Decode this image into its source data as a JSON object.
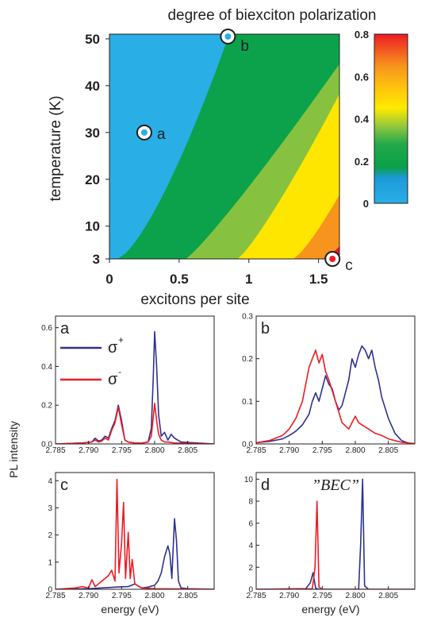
{
  "chart_data": [
    {
      "type": "heatmap",
      "title": "degree of biexciton polarization",
      "xlabel": "excitons per site",
      "ylabel": "temperature (K)",
      "xlim": [
        0,
        1.65
      ],
      "ylim": [
        3,
        51
      ],
      "x_ticks": [
        "0",
        "0.5",
        "1",
        "1.5"
      ],
      "x_tick_values": [
        0,
        0.5,
        1,
        1.5
      ],
      "y_ticks": [
        "3",
        "10",
        "20",
        "30",
        "40",
        "50"
      ],
      "y_tick_values": [
        3,
        10,
        20,
        30,
        40,
        50
      ],
      "colorbar": {
        "range": [
          0,
          0.8
        ],
        "ticks": [
          "0",
          "0.2",
          "0.4",
          "0.6",
          "0.8"
        ],
        "tick_values": [
          0,
          0.2,
          0.4,
          0.6,
          0.8
        ],
        "colors": [
          "#29aee6",
          "#1c9ad8",
          "#0aa04a",
          "#23a94a",
          "#8cc63f",
          "#ffea00",
          "#ffc20e",
          "#f7941d",
          "#ed1c24"
        ],
        "levels": [
          0,
          0.12,
          0.17,
          0.28,
          0.36,
          0.45,
          0.55,
          0.65,
          0.8
        ]
      },
      "points": [
        {
          "label": "a",
          "x": 0.25,
          "y": 30
        },
        {
          "label": "b",
          "x": 0.85,
          "y": 50.5
        },
        {
          "label": "c",
          "x": 1.6,
          "y": 3
        }
      ]
    },
    {
      "type": "line",
      "panel_label": "a",
      "xlabel": "",
      "ylabel": "",
      "xlim": [
        2.785,
        2.809
      ],
      "ylim": [
        0,
        0.66
      ],
      "x_ticks": [
        "2.785",
        "2.790",
        "2.795",
        "2.800",
        "2.805"
      ],
      "x_tick_values": [
        2.785,
        2.79,
        2.795,
        2.8,
        2.805
      ],
      "y_ticks": [
        "0.0",
        "0.2",
        "0.4",
        "0.6"
      ],
      "y_tick_values": [
        0,
        0.2,
        0.4,
        0.6
      ],
      "legend": [
        {
          "label": "σ",
          "sup": "+",
          "color": "#2e3192"
        },
        {
          "label": "σ",
          "sup": "-",
          "color": "#ed1c24"
        }
      ],
      "series": [
        {
          "name": "σ+",
          "color": "#2e3192",
          "x": [
            2.785,
            2.789,
            2.7905,
            2.791,
            2.7915,
            2.792,
            2.7925,
            2.793,
            2.7935,
            2.794,
            2.7945,
            2.795,
            2.7955,
            2.796,
            2.797,
            2.798,
            2.799,
            2.7995,
            2.7998,
            2.8,
            2.8003,
            2.8006,
            2.801,
            2.8015,
            2.802,
            2.8025,
            2.803,
            2.804,
            2.809
          ],
          "y": [
            0,
            0.005,
            0.01,
            0.03,
            0.015,
            0.02,
            0.04,
            0.03,
            0.08,
            0.12,
            0.2,
            0.12,
            0.02,
            0.01,
            0.005,
            0.004,
            0.01,
            0.08,
            0.35,
            0.58,
            0.4,
            0.15,
            0.04,
            0.06,
            0.02,
            0.05,
            0.03,
            0.01,
            0
          ]
        },
        {
          "name": "σ-",
          "color": "#ed1c24",
          "x": [
            2.785,
            2.789,
            2.7905,
            2.791,
            2.7915,
            2.792,
            2.7925,
            2.793,
            2.7935,
            2.794,
            2.7945,
            2.795,
            2.7955,
            2.796,
            2.797,
            2.798,
            2.799,
            2.7995,
            2.7998,
            2.8,
            2.8003,
            2.8006,
            2.801,
            2.8015,
            2.802,
            2.803,
            2.809
          ],
          "y": [
            0,
            0.005,
            0.01,
            0.02,
            0.01,
            0.015,
            0.03,
            0.02,
            0.07,
            0.11,
            0.19,
            0.1,
            0.02,
            0.01,
            0.005,
            0.004,
            0.01,
            0.04,
            0.14,
            0.21,
            0.12,
            0.05,
            0.02,
            0.01,
            0.01,
            0.005,
            0
          ]
        }
      ]
    },
    {
      "type": "line",
      "panel_label": "b",
      "xlabel": "",
      "ylabel": "",
      "xlim": [
        2.785,
        2.809
      ],
      "ylim": [
        0,
        0.3
      ],
      "x_ticks": [
        "2.785",
        "2.790",
        "2.795",
        "2.800",
        "2.805"
      ],
      "x_tick_values": [
        2.785,
        2.79,
        2.795,
        2.8,
        2.805
      ],
      "y_ticks": [
        "0.0",
        "0.1",
        "0.2",
        "0.3"
      ],
      "y_tick_values": [
        0,
        0.1,
        0.2,
        0.3
      ],
      "series": [
        {
          "name": "σ+",
          "color": "#2e3192",
          "x": [
            2.785,
            2.787,
            2.789,
            2.79,
            2.791,
            2.792,
            2.793,
            2.7935,
            2.794,
            2.7945,
            2.795,
            2.7955,
            2.796,
            2.7965,
            2.797,
            2.7975,
            2.798,
            2.7985,
            2.799,
            2.7995,
            2.8,
            2.8005,
            2.801,
            2.8015,
            2.802,
            2.8025,
            2.803,
            2.8035,
            2.804,
            2.805,
            2.806,
            2.807,
            2.808
          ],
          "y": [
            0.003,
            0.006,
            0.012,
            0.02,
            0.03,
            0.045,
            0.07,
            0.1,
            0.12,
            0.1,
            0.13,
            0.16,
            0.14,
            0.13,
            0.1,
            0.08,
            0.09,
            0.12,
            0.15,
            0.2,
            0.18,
            0.21,
            0.23,
            0.22,
            0.2,
            0.22,
            0.18,
            0.15,
            0.11,
            0.06,
            0.025,
            0.008,
            0.002
          ]
        },
        {
          "name": "σ-",
          "color": "#ed1c24",
          "x": [
            2.785,
            2.787,
            2.789,
            2.79,
            2.791,
            2.792,
            2.7925,
            2.793,
            2.7935,
            2.794,
            2.7945,
            2.795,
            2.7955,
            2.796,
            2.797,
            2.798,
            2.799,
            2.7995,
            2.8,
            2.8005,
            2.801,
            2.802,
            2.803,
            2.804,
            2.805,
            2.807,
            2.809
          ],
          "y": [
            0.003,
            0.008,
            0.02,
            0.035,
            0.06,
            0.1,
            0.14,
            0.18,
            0.2,
            0.22,
            0.19,
            0.21,
            0.17,
            0.15,
            0.1,
            0.05,
            0.035,
            0.05,
            0.065,
            0.05,
            0.045,
            0.035,
            0.025,
            0.02,
            0.012,
            0.004,
            0.001
          ]
        }
      ]
    },
    {
      "type": "line",
      "panel_label": "c",
      "xlabel": "energy (eV)",
      "ylabel": "",
      "xlim": [
        2.785,
        2.809
      ],
      "ylim": [
        0,
        4.3
      ],
      "x_ticks": [
        "2.785",
        "2.790",
        "2.795",
        "2.800",
        "2.805"
      ],
      "x_tick_values": [
        2.785,
        2.79,
        2.795,
        2.8,
        2.805
      ],
      "y_ticks": [
        "0",
        "1",
        "2",
        "3",
        "4"
      ],
      "y_tick_values": [
        0,
        1,
        2,
        3,
        4
      ],
      "series": [
        {
          "name": "σ+",
          "color": "#2e3192",
          "x": [
            2.785,
            2.79,
            2.792,
            2.794,
            2.796,
            2.797,
            2.798,
            2.799,
            2.8,
            2.8005,
            2.801,
            2.8015,
            2.802,
            2.8023,
            2.8026,
            2.803,
            2.8033,
            2.8036,
            2.804,
            2.805,
            2.809
          ],
          "y": [
            0,
            0.02,
            0.05,
            0.08,
            0.1,
            0.2,
            0.05,
            0.08,
            0.15,
            0.3,
            0.6,
            1.2,
            1.6,
            1.3,
            0.4,
            2.6,
            1.8,
            0.3,
            0.05,
            0.02,
            0
          ]
        },
        {
          "name": "σ-",
          "color": "#ed1c24",
          "x": [
            2.785,
            2.788,
            2.789,
            2.79,
            2.7905,
            2.791,
            2.792,
            2.793,
            2.7935,
            2.794,
            2.7943,
            2.7946,
            2.795,
            2.7953,
            2.7956,
            2.796,
            2.7963,
            2.7966,
            2.797,
            2.798,
            2.8,
            2.809
          ],
          "y": [
            0,
            0.05,
            0.1,
            0.05,
            0.35,
            0.1,
            0.3,
            0.5,
            0.7,
            0.3,
            4.05,
            0.6,
            1.7,
            3.2,
            0.4,
            2.1,
            0.4,
            1.1,
            0.2,
            0.05,
            0.02,
            0
          ]
        }
      ]
    },
    {
      "type": "line",
      "panel_label": "d",
      "annotation": "”BEC”",
      "xlabel": "energy (eV)",
      "ylabel": "",
      "xlim": [
        2.785,
        2.809
      ],
      "ylim": [
        0,
        10.6
      ],
      "x_ticks": [
        "2.785",
        "2.790",
        "2.795",
        "2.800",
        "2.805"
      ],
      "x_tick_values": [
        2.785,
        2.79,
        2.795,
        2.8,
        2.805
      ],
      "y_ticks": [
        "0",
        "2",
        "4",
        "6",
        "8",
        "10"
      ],
      "y_tick_values": [
        0,
        2,
        4,
        6,
        8,
        10
      ],
      "series": [
        {
          "name": "σ+",
          "color": "#2e3192",
          "x": [
            2.785,
            2.7925,
            2.7932,
            2.7936,
            2.794,
            2.7945,
            2.8005,
            2.8008,
            2.8011,
            2.8014,
            2.802,
            2.809
          ],
          "y": [
            0,
            0.05,
            0.6,
            1.5,
            0.1,
            0,
            0,
            4.0,
            10.0,
            0.3,
            0,
            0
          ]
        },
        {
          "name": "σ-",
          "color": "#ed1c24",
          "x": [
            2.785,
            2.7935,
            2.7939,
            2.7942,
            2.7945,
            2.795,
            2.809
          ],
          "y": [
            0,
            0.05,
            2.0,
            8.0,
            0.2,
            0,
            0
          ]
        }
      ]
    }
  ],
  "shared": {
    "ylabel": "PL intensity"
  }
}
